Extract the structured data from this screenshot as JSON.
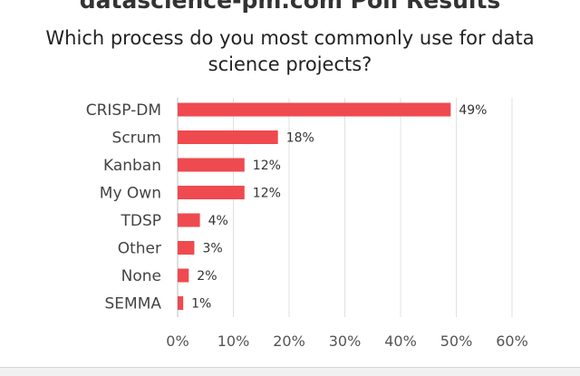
{
  "chart_data": {
    "type": "bar",
    "orientation": "horizontal",
    "title": "datascience-pm.com Poll Results",
    "subtitle": "Which process do you most commonly use for data science projects?",
    "categories": [
      "CRISP-DM",
      "Scrum",
      "Kanban",
      "My Own",
      "TDSP",
      "Other",
      "None",
      "SEMMA"
    ],
    "values": [
      49,
      18,
      12,
      12,
      4,
      3,
      2,
      1
    ],
    "value_labels": [
      "49%",
      "18%",
      "12%",
      "12%",
      "4%",
      "3%",
      "2%",
      "1%"
    ],
    "x_ticks": [
      "0%",
      "10%",
      "20%",
      "30%",
      "40%",
      "50%",
      "60%"
    ],
    "xlim": [
      0,
      60
    ],
    "grid": "vertical",
    "bar_color": "#ef4a4f"
  }
}
